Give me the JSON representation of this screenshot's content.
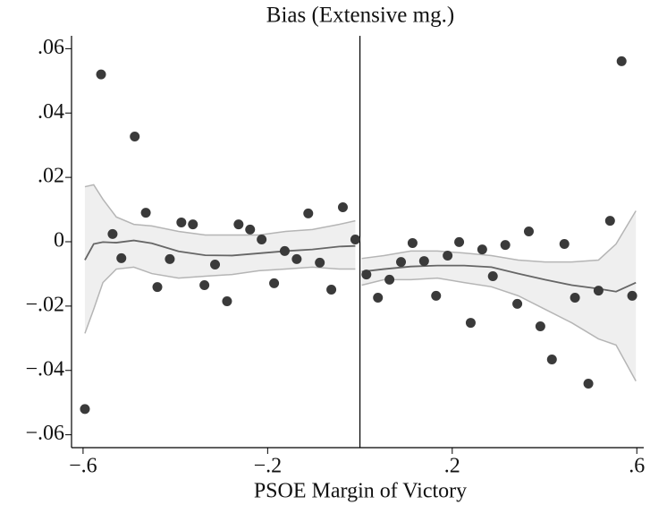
{
  "chart_data": {
    "type": "rd_scatter",
    "title": "Bias (Extensive mg.)",
    "x_label": "PSOE Margin of Victory",
    "xlim": [
      -0.625,
      0.615
    ],
    "ylim": [
      -0.064,
      0.064
    ],
    "xticks": [
      {
        "value": -0.6,
        "label": "−.6"
      },
      {
        "value": -0.2,
        "label": "−.2"
      },
      {
        "value": 0.2,
        "label": ".2"
      },
      {
        "value": 0.6,
        "label": ".6"
      }
    ],
    "yticks": [
      {
        "value": 0.06,
        "label": ".06"
      },
      {
        "value": 0.04,
        "label": ".04"
      },
      {
        "value": 0.02,
        "label": ".02"
      },
      0,
      {
        "value": -0.02,
        "label": "−.02"
      },
      {
        "value": -0.04,
        "label": "−.04"
      },
      {
        "value": -0.06,
        "label": "−.06"
      }
    ],
    "cutoff": 0,
    "point_color": "#3a3a3a",
    "fit_color": "#666666",
    "band_color": "#efefef",
    "band_edge_color": "#b5b5b5",
    "x": [
      -0.596,
      -0.561,
      -0.536,
      -0.517,
      -0.488,
      -0.464,
      -0.439,
      -0.412,
      -0.387,
      -0.362,
      -0.337,
      -0.314,
      -0.288,
      -0.263,
      -0.238,
      -0.213,
      -0.186,
      -0.163,
      -0.137,
      -0.112,
      -0.087,
      -0.062,
      -0.037,
      -0.01,
      0.014,
      0.039,
      0.064,
      0.089,
      0.114,
      0.139,
      0.165,
      0.19,
      0.215,
      0.24,
      0.265,
      0.288,
      0.315,
      0.341,
      0.366,
      0.391,
      0.416,
      0.443,
      0.466,
      0.495,
      0.517,
      0.542,
      0.567,
      0.59
    ],
    "values": [
      -0.052,
      0.052,
      0.0024,
      -0.0051,
      0.0327,
      0.009,
      -0.0141,
      -0.0054,
      0.006,
      0.0054,
      -0.0135,
      -0.0071,
      -0.0185,
      0.0054,
      0.0038,
      0.0007,
      -0.0129,
      -0.0029,
      -0.0054,
      0.0088,
      -0.0065,
      -0.0149,
      0.0107,
      0.0007,
      -0.0102,
      -0.0174,
      -0.0118,
      -0.0063,
      -0.0004,
      -0.006,
      -0.0168,
      -0.0043,
      -0.0001,
      -0.0252,
      -0.0024,
      -0.0107,
      -0.001,
      -0.0193,
      0.0032,
      -0.0263,
      -0.0366,
      -0.0007,
      -0.0174,
      -0.0441,
      -0.0152,
      0.0065,
      0.0561,
      -0.0168
    ],
    "segments": [
      {
        "x": [
          -0.596,
          -0.577,
          -0.557,
          -0.528,
          -0.49,
          -0.451,
          -0.393,
          -0.335,
          -0.277,
          -0.219,
          -0.161,
          -0.103,
          -0.045,
          -0.01
        ],
        "fit": [
          -0.0057,
          -0.0007,
          -0.0001,
          -0.0003,
          0.0004,
          -0.0005,
          -0.003,
          -0.0042,
          -0.0043,
          -0.0036,
          -0.0029,
          -0.0024,
          -0.0015,
          -0.0013
        ],
        "upper": [
          0.0171,
          0.0177,
          0.0132,
          0.0077,
          0.0054,
          0.0049,
          0.0032,
          0.0021,
          0.0021,
          0.0021,
          0.0032,
          0.0038,
          0.0054,
          0.0065
        ],
        "lower": [
          -0.0285,
          -0.021,
          -0.0127,
          -0.0085,
          -0.0079,
          -0.0099,
          -0.0113,
          -0.0107,
          -0.0102,
          -0.009,
          -0.0085,
          -0.0079,
          -0.0085,
          -0.0085
        ]
      },
      {
        "x": [
          0.004,
          0.052,
          0.11,
          0.168,
          0.226,
          0.285,
          0.343,
          0.401,
          0.459,
          0.517,
          0.555,
          0.598
        ],
        "fit": [
          -0.0093,
          -0.0085,
          -0.0077,
          -0.0074,
          -0.0074,
          -0.0079,
          -0.0099,
          -0.0118,
          -0.0135,
          -0.0146,
          -0.0155,
          -0.0127
        ],
        "upper": [
          -0.0052,
          -0.0043,
          -0.0029,
          -0.0029,
          -0.0035,
          -0.0043,
          -0.0057,
          -0.0063,
          -0.0063,
          -0.0057,
          -0.0007,
          0.0096
        ],
        "lower": [
          -0.0135,
          -0.0118,
          -0.0118,
          -0.0113,
          -0.0127,
          -0.014,
          -0.0168,
          -0.021,
          -0.0252,
          -0.0302,
          -0.0321,
          -0.0433
        ]
      }
    ]
  }
}
